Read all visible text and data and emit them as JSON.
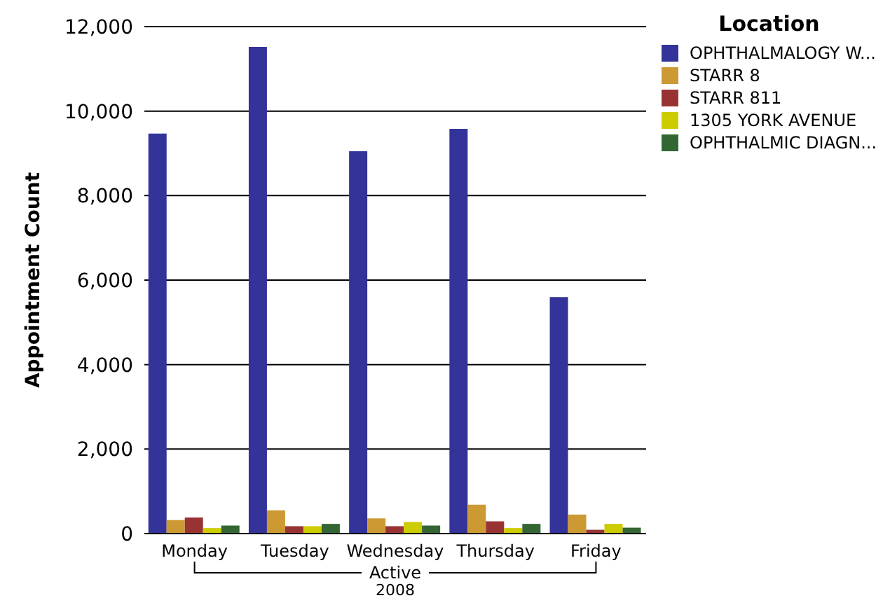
{
  "chart_data": {
    "type": "bar",
    "ylabel": "Appointment Count",
    "xlabel": "Active",
    "annotations": [
      "2008"
    ],
    "legend_title": "Location",
    "legend": "top right",
    "grid": "y",
    "categories": [
      "Monday",
      "Tuesday",
      "Wednesday",
      "Thursday",
      "Friday"
    ],
    "ylim": [
      0,
      12000
    ],
    "yticks": [
      {
        "value": 0,
        "label": "0"
      },
      {
        "value": 2000,
        "label": "2,000"
      },
      {
        "value": 4000,
        "label": "4,000"
      },
      {
        "value": 6000,
        "label": "6,000"
      },
      {
        "value": 8000,
        "label": "8,000"
      },
      {
        "value": 10000,
        "label": "10,000"
      },
      {
        "value": 12000,
        "label": "12,000"
      }
    ],
    "series": [
      {
        "name": "OPHTHALMALOGY W...",
        "color": "#333399",
        "values": [
          9470,
          11520,
          9050,
          9580,
          5600
        ]
      },
      {
        "name": "STARR 8",
        "color": "#cc9933",
        "values": [
          320,
          550,
          360,
          685,
          450
        ]
      },
      {
        "name": "STARR 811",
        "color": "#993333",
        "values": [
          380,
          175,
          175,
          290,
          90
        ]
      },
      {
        "name": "1305 YORK AVENUE",
        "color": "#cccc00",
        "values": [
          130,
          175,
          275,
          130,
          230
        ]
      },
      {
        "name": "OPHTHALMIC DIAGN...",
        "color": "#336633",
        "values": [
          190,
          230,
          190,
          230,
          140
        ]
      }
    ]
  }
}
